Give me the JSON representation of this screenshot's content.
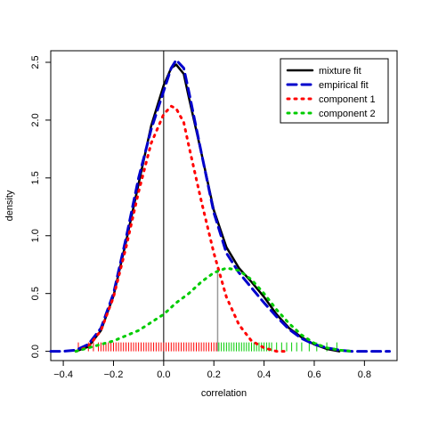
{
  "chart_data": {
    "type": "line",
    "title": "",
    "xlabel": "correlation",
    "ylabel": "density",
    "xlim": [
      -0.45,
      0.93
    ],
    "ylim": [
      -0.08,
      2.6
    ],
    "x_ticks": [
      -0.4,
      -0.2,
      0.0,
      0.2,
      0.4,
      0.6,
      0.8
    ],
    "x_tick_labels": [
      "−0.4",
      "−0.2",
      "0.0",
      "0.2",
      "0.4",
      "0.6",
      "0.8"
    ],
    "y_ticks": [
      0.0,
      0.5,
      1.0,
      1.5,
      2.0,
      2.5
    ],
    "y_tick_labels": [
      "0.0",
      "0.5",
      "1.0",
      "1.5",
      "2.0",
      "2.5"
    ],
    "grid": false,
    "legend_position": "top-right",
    "vline_x": 0.0,
    "cutoff_x": 0.215,
    "cutoff_y": 0.72,
    "series": [
      {
        "name": "mixture fit",
        "color": "#000000",
        "style": "solid",
        "points": [
          [
            -0.35,
            0.0
          ],
          [
            -0.3,
            0.04
          ],
          [
            -0.25,
            0.18
          ],
          [
            -0.2,
            0.48
          ],
          [
            -0.15,
            0.95
          ],
          [
            -0.1,
            1.45
          ],
          [
            -0.05,
            1.95
          ],
          [
            0.0,
            2.3
          ],
          [
            0.03,
            2.45
          ],
          [
            0.05,
            2.48
          ],
          [
            0.08,
            2.4
          ],
          [
            0.1,
            2.2
          ],
          [
            0.15,
            1.72
          ],
          [
            0.2,
            1.22
          ],
          [
            0.25,
            0.9
          ],
          [
            0.3,
            0.72
          ],
          [
            0.35,
            0.6
          ],
          [
            0.4,
            0.47
          ],
          [
            0.45,
            0.32
          ],
          [
            0.5,
            0.2
          ],
          [
            0.55,
            0.12
          ],
          [
            0.6,
            0.06
          ],
          [
            0.65,
            0.02
          ],
          [
            0.7,
            0.0
          ]
        ]
      },
      {
        "name": "empirical fit",
        "color": "#0000cc",
        "style": "dashed",
        "points": [
          [
            -0.45,
            0.0
          ],
          [
            -0.4,
            0.0
          ],
          [
            -0.35,
            0.01
          ],
          [
            -0.3,
            0.06
          ],
          [
            -0.25,
            0.2
          ],
          [
            -0.2,
            0.5
          ],
          [
            -0.15,
            0.98
          ],
          [
            -0.1,
            1.5
          ],
          [
            -0.05,
            1.92
          ],
          [
            0.0,
            2.25
          ],
          [
            0.03,
            2.45
          ],
          [
            0.05,
            2.52
          ],
          [
            0.08,
            2.45
          ],
          [
            0.1,
            2.25
          ],
          [
            0.15,
            1.72
          ],
          [
            0.2,
            1.2
          ],
          [
            0.25,
            0.85
          ],
          [
            0.3,
            0.68
          ],
          [
            0.35,
            0.55
          ],
          [
            0.4,
            0.42
          ],
          [
            0.45,
            0.3
          ],
          [
            0.5,
            0.19
          ],
          [
            0.55,
            0.11
          ],
          [
            0.6,
            0.06
          ],
          [
            0.65,
            0.03
          ],
          [
            0.7,
            0.01
          ],
          [
            0.75,
            0.0
          ],
          [
            0.8,
            0.0
          ],
          [
            0.85,
            0.0
          ],
          [
            0.9,
            0.0
          ]
        ]
      },
      {
        "name": "component 1",
        "color": "#ff0000",
        "style": "dotted",
        "points": [
          [
            -0.35,
            0.0
          ],
          [
            -0.3,
            0.04
          ],
          [
            -0.25,
            0.18
          ],
          [
            -0.2,
            0.47
          ],
          [
            -0.15,
            0.9
          ],
          [
            -0.1,
            1.38
          ],
          [
            -0.05,
            1.8
          ],
          [
            0.0,
            2.05
          ],
          [
            0.03,
            2.12
          ],
          [
            0.05,
            2.1
          ],
          [
            0.08,
            1.98
          ],
          [
            0.1,
            1.78
          ],
          [
            0.15,
            1.3
          ],
          [
            0.2,
            0.85
          ],
          [
            0.25,
            0.47
          ],
          [
            0.3,
            0.23
          ],
          [
            0.35,
            0.09
          ],
          [
            0.4,
            0.03
          ],
          [
            0.45,
            0.0
          ],
          [
            0.5,
            0.0
          ]
        ]
      },
      {
        "name": "component 2",
        "color": "#00cc00",
        "style": "dotted",
        "points": [
          [
            -0.35,
            0.0
          ],
          [
            -0.3,
            0.03
          ],
          [
            -0.2,
            0.09
          ],
          [
            -0.1,
            0.18
          ],
          [
            -0.05,
            0.25
          ],
          [
            0.0,
            0.32
          ],
          [
            0.05,
            0.42
          ],
          [
            0.1,
            0.5
          ],
          [
            0.15,
            0.6
          ],
          [
            0.2,
            0.68
          ],
          [
            0.25,
            0.72
          ],
          [
            0.3,
            0.7
          ],
          [
            0.35,
            0.62
          ],
          [
            0.4,
            0.5
          ],
          [
            0.45,
            0.36
          ],
          [
            0.5,
            0.24
          ],
          [
            0.55,
            0.14
          ],
          [
            0.6,
            0.07
          ],
          [
            0.65,
            0.03
          ],
          [
            0.7,
            0.01
          ],
          [
            0.75,
            0.0
          ]
        ]
      }
    ],
    "rug": {
      "color_below_cutoff": "#ff0000",
      "color_above_cutoff": "#00cc00",
      "values": [
        -0.34,
        -0.3,
        -0.28,
        -0.26,
        -0.25,
        -0.24,
        -0.23,
        -0.22,
        -0.21,
        -0.2,
        -0.19,
        -0.18,
        -0.17,
        -0.16,
        -0.15,
        -0.14,
        -0.13,
        -0.12,
        -0.11,
        -0.1,
        -0.09,
        -0.08,
        -0.07,
        -0.06,
        -0.05,
        -0.04,
        -0.03,
        -0.02,
        -0.01,
        0.0,
        0.01,
        0.02,
        0.03,
        0.04,
        0.05,
        0.06,
        0.07,
        0.08,
        0.09,
        0.1,
        0.11,
        0.12,
        0.13,
        0.14,
        0.15,
        0.16,
        0.17,
        0.18,
        0.19,
        0.2,
        0.21,
        0.22,
        0.23,
        0.24,
        0.25,
        0.26,
        0.27,
        0.28,
        0.29,
        0.3,
        0.31,
        0.32,
        0.33,
        0.34,
        0.35,
        0.36,
        0.37,
        0.38,
        0.39,
        0.4,
        0.41,
        0.42,
        0.43,
        0.45,
        0.47,
        0.49,
        0.51,
        0.53,
        0.55,
        0.58,
        0.61,
        0.65,
        0.69
      ]
    }
  }
}
